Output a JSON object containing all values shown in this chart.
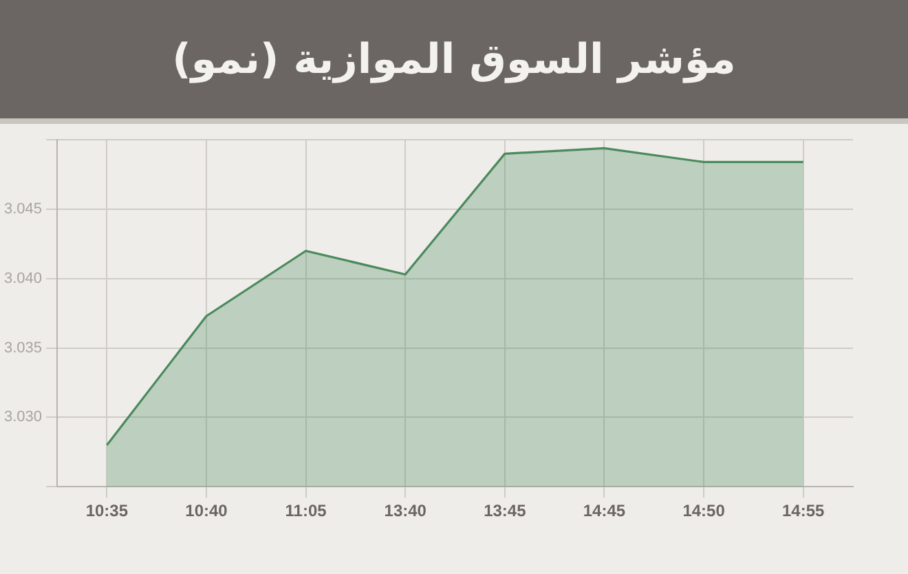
{
  "chart_data": {
    "type": "area",
    "title": "مؤشر السوق الموازية (نمو)",
    "categories": [
      "10:35",
      "10:40",
      "11:05",
      "13:40",
      "13:45",
      "14:45",
      "14:50",
      "14:55"
    ],
    "series": [
      {
        "color": "#4a8a5c",
        "values": [
          3.028,
          3.0373,
          3.042,
          3.0403,
          3.049,
          3.0494,
          3.0484,
          3.0484
        ]
      }
    ],
    "ylim": [
      3.025,
      3.05
    ],
    "yticks": [
      {
        "value": 3.025,
        "label": null
      },
      {
        "value": 3.03,
        "label": "3.030"
      },
      {
        "value": 3.035,
        "label": "3.035"
      },
      {
        "value": 3.04,
        "label": "3.040"
      },
      {
        "value": 3.045,
        "label": "3.045"
      },
      {
        "value": 3.05,
        "label": null
      }
    ],
    "grid": true,
    "legend": false,
    "marker": "none"
  }
}
